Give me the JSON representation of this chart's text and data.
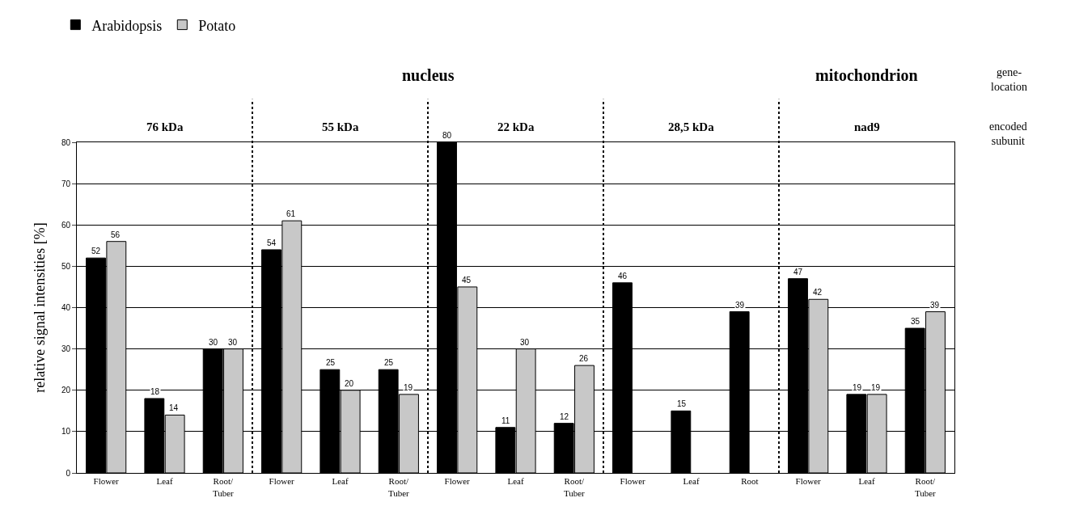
{
  "chart_data": {
    "type": "bar",
    "ylabel": "relative signal intensities [%]",
    "categories": [
      "Flower",
      "Leaf",
      "Root/\nTuber",
      "Flower",
      "Leaf",
      "Root/\nTuber",
      "Flower",
      "Leaf",
      "Root/\nTuber",
      "Flower",
      "Leaf",
      "Root",
      "Flower",
      "Leaf",
      "Root/\nTuber"
    ],
    "series": [
      {
        "name": "Arabidopsis",
        "color": "#000000",
        "values": [
          52,
          18,
          30,
          54,
          25,
          25,
          80,
          11,
          12,
          46,
          15,
          39,
          47,
          19,
          35
        ]
      },
      {
        "name": "Potato",
        "color": "#c8c8c8",
        "values": [
          56,
          14,
          30,
          61,
          20,
          19,
          45,
          30,
          26,
          null,
          null,
          null,
          42,
          19,
          39
        ]
      }
    ],
    "ylim": [
      0,
      80
    ],
    "yticks": [
      0,
      10,
      20,
      30,
      40,
      50,
      60,
      70,
      80
    ],
    "grid": "y",
    "legend": "top left",
    "data_labels": true,
    "annotations": [
      "nucleus",
      "mitochondrion",
      "gene-\nlocation",
      "76 kDa",
      "55 kDa",
      "22 kDa",
      "28,5 kDa",
      "nad9",
      "encoded\nsubunit"
    ]
  }
}
